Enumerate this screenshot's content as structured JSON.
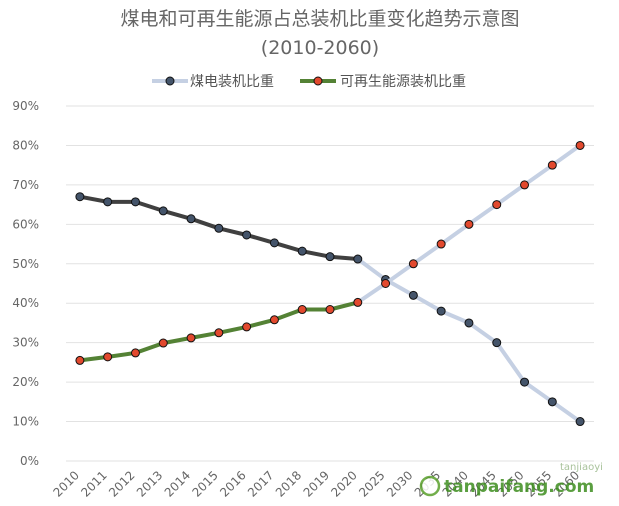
{
  "chart_data": {
    "type": "line",
    "title": "煤电和可再生能源占总装机比重变化趋势示意图",
    "subtitle": "(2010-2060)",
    "categories": [
      "2010",
      "2011",
      "2012",
      "2013",
      "2014",
      "2015",
      "2016",
      "2017",
      "2018",
      "2019",
      "2020",
      "2025",
      "2030",
      "2035",
      "2040",
      "2045",
      "2050",
      "2055",
      "2060"
    ],
    "ylim": [
      0,
      90
    ],
    "y_ticks": [
      "0%",
      "10%",
      "20%",
      "30%",
      "40%",
      "50%",
      "60%",
      "70%",
      "80%",
      "90%"
    ],
    "grid": true,
    "legend_position": "top",
    "series": [
      {
        "name": "煤电装机比重",
        "historical_color": "#404040",
        "projection_color": "#c5d0e3",
        "marker_color": "#44546a",
        "values": [
          67,
          65.7,
          65.7,
          63.4,
          61.4,
          59,
          57.3,
          55.3,
          53.2,
          51.8,
          51.2,
          46,
          42,
          38,
          35,
          30,
          20,
          15,
          10
        ]
      },
      {
        "name": "可再生能源装机比重",
        "historical_color": "#548235",
        "projection_color": "#c5d0e3",
        "marker_color": "#e2492e",
        "values": [
          25.5,
          26.4,
          27.4,
          29.9,
          31.2,
          32.5,
          34,
          35.8,
          38.4,
          38.4,
          40.2,
          45,
          50,
          55,
          60,
          65,
          70,
          75,
          80
        ]
      }
    ],
    "historical_last_index": 10
  },
  "watermark": {
    "brand_text": "tanpaifang.com",
    "small_text": "tanjiaoyi"
  }
}
